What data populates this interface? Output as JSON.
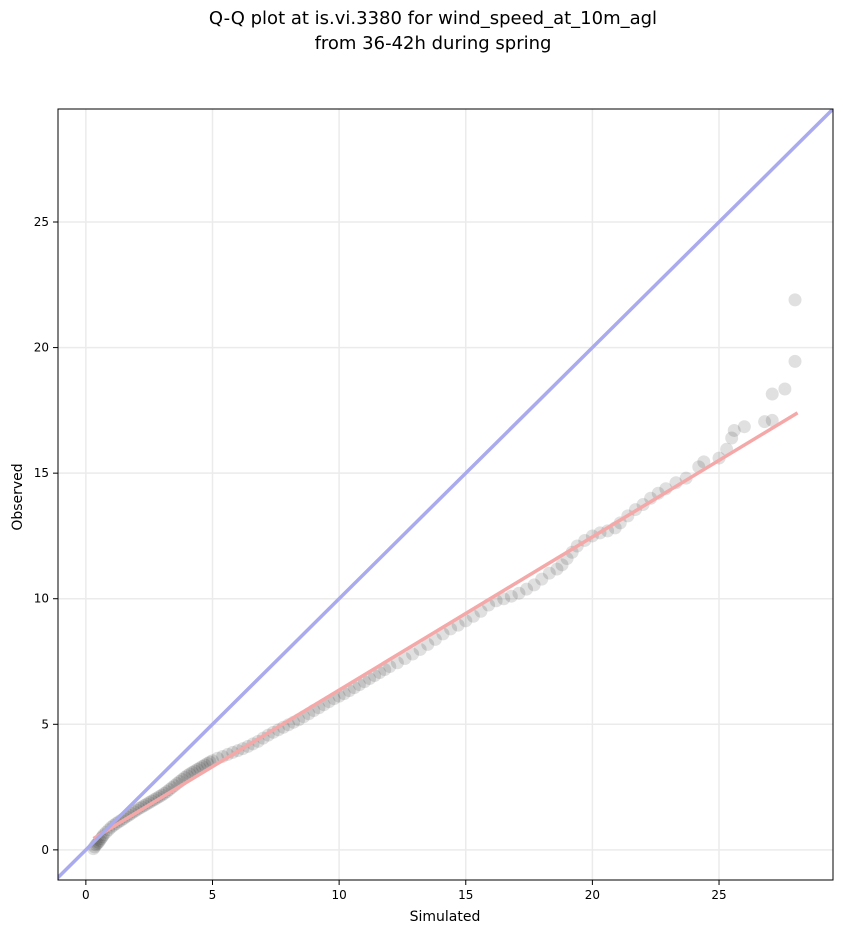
{
  "chart_data": {
    "type": "scatter",
    "title_line1": "Q-Q plot at is.vi.3380 for wind_speed_at_10m_agl",
    "title_line2": "from 36-42h during spring",
    "xlabel": "Simulated",
    "ylabel": "Observed",
    "xlim": [
      -1.1,
      29.5
    ],
    "ylim": [
      -1.2,
      29.5
    ],
    "xticks": [
      0,
      5,
      10,
      15,
      20,
      25
    ],
    "yticks": [
      0,
      5,
      10,
      15,
      20,
      25
    ],
    "grid": true,
    "identity_line_color": "#aaaaee",
    "fit_line_color": "#f5a8a8",
    "point_color": "#000000",
    "fit_line": {
      "x": [
        0.3,
        28.1
      ],
      "y": [
        0.45,
        17.4
      ]
    },
    "series": [
      {
        "values": [
          [
            0.3,
            0.05
          ],
          [
            0.35,
            0.12
          ],
          [
            0.4,
            0.2
          ],
          [
            0.45,
            0.25
          ],
          [
            0.5,
            0.3
          ],
          [
            0.55,
            0.38
          ],
          [
            0.6,
            0.45
          ],
          [
            0.65,
            0.52
          ],
          [
            0.7,
            0.6
          ],
          [
            0.8,
            0.7
          ],
          [
            0.9,
            0.8
          ],
          [
            1.0,
            0.9
          ],
          [
            1.1,
            0.98
          ],
          [
            1.2,
            1.05
          ],
          [
            1.3,
            1.12
          ],
          [
            1.4,
            1.18
          ],
          [
            1.5,
            1.25
          ],
          [
            1.6,
            1.32
          ],
          [
            1.7,
            1.38
          ],
          [
            1.8,
            1.45
          ],
          [
            1.9,
            1.52
          ],
          [
            2.0,
            1.58
          ],
          [
            2.1,
            1.65
          ],
          [
            2.2,
            1.7
          ],
          [
            2.3,
            1.76
          ],
          [
            2.4,
            1.82
          ],
          [
            2.5,
            1.88
          ],
          [
            2.6,
            1.94
          ],
          [
            2.7,
            2.0
          ],
          [
            2.8,
            2.06
          ],
          [
            2.9,
            2.12
          ],
          [
            3.0,
            2.18
          ],
          [
            3.1,
            2.25
          ],
          [
            3.2,
            2.32
          ],
          [
            3.3,
            2.4
          ],
          [
            3.4,
            2.48
          ],
          [
            3.5,
            2.56
          ],
          [
            3.6,
            2.64
          ],
          [
            3.7,
            2.72
          ],
          [
            3.8,
            2.8
          ],
          [
            3.9,
            2.88
          ],
          [
            4.0,
            2.95
          ],
          [
            4.1,
            3.02
          ],
          [
            4.2,
            3.08
          ],
          [
            4.3,
            3.14
          ],
          [
            4.4,
            3.2
          ],
          [
            4.5,
            3.26
          ],
          [
            4.6,
            3.32
          ],
          [
            4.7,
            3.38
          ],
          [
            4.8,
            3.44
          ],
          [
            4.9,
            3.5
          ],
          [
            5.0,
            3.55
          ],
          [
            5.2,
            3.65
          ],
          [
            5.4,
            3.72
          ],
          [
            5.6,
            3.8
          ],
          [
            5.8,
            3.88
          ],
          [
            6.0,
            3.95
          ],
          [
            6.2,
            4.03
          ],
          [
            6.4,
            4.12
          ],
          [
            6.6,
            4.22
          ],
          [
            6.8,
            4.32
          ],
          [
            7.0,
            4.45
          ],
          [
            7.2,
            4.57
          ],
          [
            7.4,
            4.68
          ],
          [
            7.6,
            4.78
          ],
          [
            7.8,
            4.88
          ],
          [
            8.0,
            4.98
          ],
          [
            8.2,
            5.08
          ],
          [
            8.4,
            5.18
          ],
          [
            8.6,
            5.3
          ],
          [
            8.8,
            5.42
          ],
          [
            9.0,
            5.55
          ],
          [
            9.2,
            5.66
          ],
          [
            9.4,
            5.78
          ],
          [
            9.6,
            5.9
          ],
          [
            9.8,
            6.02
          ],
          [
            10.0,
            6.12
          ],
          [
            10.2,
            6.22
          ],
          [
            10.4,
            6.34
          ],
          [
            10.6,
            6.46
          ],
          [
            10.8,
            6.58
          ],
          [
            11.0,
            6.7
          ],
          [
            11.2,
            6.82
          ],
          [
            11.4,
            6.94
          ],
          [
            11.6,
            7.06
          ],
          [
            11.8,
            7.18
          ],
          [
            12.0,
            7.3
          ],
          [
            12.3,
            7.45
          ],
          [
            12.6,
            7.62
          ],
          [
            12.9,
            7.8
          ],
          [
            13.2,
            7.98
          ],
          [
            13.5,
            8.18
          ],
          [
            13.8,
            8.38
          ],
          [
            14.1,
            8.6
          ],
          [
            14.4,
            8.8
          ],
          [
            14.7,
            8.95
          ],
          [
            15.0,
            9.12
          ],
          [
            15.3,
            9.3
          ],
          [
            15.6,
            9.5
          ],
          [
            15.9,
            9.75
          ],
          [
            16.2,
            9.92
          ],
          [
            16.5,
            10.0
          ],
          [
            16.8,
            10.1
          ],
          [
            17.1,
            10.22
          ],
          [
            17.4,
            10.38
          ],
          [
            17.7,
            10.55
          ],
          [
            18.0,
            10.78
          ],
          [
            18.3,
            11.02
          ],
          [
            18.6,
            11.18
          ],
          [
            18.8,
            11.35
          ],
          [
            19.0,
            11.6
          ],
          [
            19.2,
            11.85
          ],
          [
            19.4,
            12.1
          ],
          [
            19.7,
            12.32
          ],
          [
            20.0,
            12.5
          ],
          [
            20.3,
            12.62
          ],
          [
            20.6,
            12.7
          ],
          [
            20.9,
            12.82
          ],
          [
            21.1,
            13.02
          ],
          [
            21.4,
            13.3
          ],
          [
            21.7,
            13.55
          ],
          [
            22.0,
            13.75
          ],
          [
            22.3,
            14.0
          ],
          [
            22.6,
            14.2
          ],
          [
            22.9,
            14.38
          ],
          [
            23.3,
            14.62
          ],
          [
            23.7,
            14.8
          ],
          [
            24.2,
            15.25
          ],
          [
            24.4,
            15.45
          ],
          [
            25.0,
            15.6
          ],
          [
            25.3,
            15.95
          ],
          [
            25.5,
            16.4
          ],
          [
            25.6,
            16.7
          ],
          [
            26.0,
            16.85
          ],
          [
            26.8,
            17.05
          ],
          [
            27.1,
            17.1
          ],
          [
            27.1,
            18.15
          ],
          [
            27.6,
            18.35
          ],
          [
            28.0,
            19.45
          ],
          [
            28.0,
            21.9
          ]
        ]
      }
    ]
  }
}
